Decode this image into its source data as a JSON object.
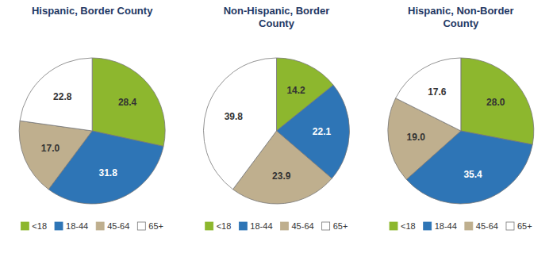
{
  "chart_data": [
    {
      "type": "pie",
      "title": "Hispanic, Border County",
      "categories": [
        "<18",
        "18-44",
        "45-64",
        "65+"
      ],
      "values": [
        28.4,
        31.8,
        17.0,
        22.8
      ],
      "value_labels": [
        "28.4",
        "31.8",
        "17.0",
        "22.8"
      ],
      "colors": [
        "#8db72e",
        "#2e75b6",
        "#bfaf8e",
        "#ffffff"
      ],
      "data_labels": true,
      "legend": "bottom"
    },
    {
      "type": "pie",
      "title": "Non-Hispanic, Border\nCounty",
      "categories": [
        "<18",
        "18-44",
        "45-64",
        "65+"
      ],
      "values": [
        14.2,
        22.1,
        23.9,
        39.8
      ],
      "value_labels": [
        "14.2",
        "22.1",
        "23.9",
        "39.8"
      ],
      "colors": [
        "#8db72e",
        "#2e75b6",
        "#bfaf8e",
        "#ffffff"
      ],
      "data_labels": true,
      "legend": "bottom"
    },
    {
      "type": "pie",
      "title": "Hispanic, Non-Border\nCounty",
      "categories": [
        "<18",
        "18-44",
        "45-64",
        "65+"
      ],
      "values": [
        28.0,
        35.4,
        19.0,
        17.6
      ],
      "value_labels": [
        "28.0",
        "35.4",
        "19.0",
        "17.6"
      ],
      "colors": [
        "#8db72e",
        "#2e75b6",
        "#bfaf8e",
        "#ffffff"
      ],
      "data_labels": true,
      "legend": "bottom"
    }
  ]
}
